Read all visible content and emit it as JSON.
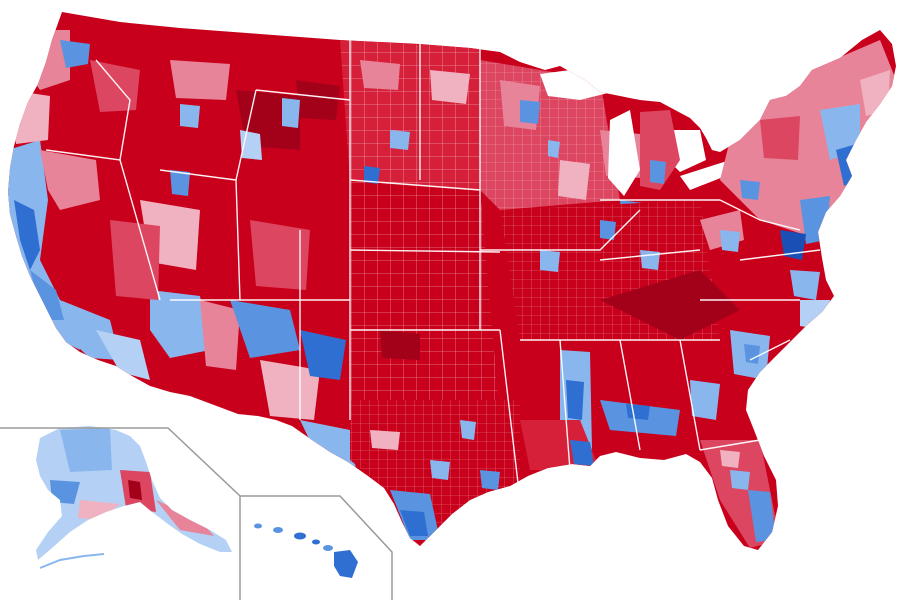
{
  "map": {
    "subject": "united-states-county-level-election-results",
    "regions": [
      "contiguous-us",
      "alaska",
      "hawaii"
    ],
    "legend": null,
    "palette": {
      "strong-red": "#c8001c",
      "deep-red": "#a3001a",
      "red": "#d6203a",
      "medium-red": "#dc4660",
      "light-red": "#e8849a",
      "pale-red": "#f0b2c0",
      "pale-blue": "#b4d1f5",
      "light-blue": "#8ab6ee",
      "medium-blue": "#5a94e0",
      "strong-blue": "#2f6fd1",
      "deep-blue": "#1a4fb5",
      "border": "#ffffff",
      "inset-frame": "#9a9a9a"
    }
  }
}
